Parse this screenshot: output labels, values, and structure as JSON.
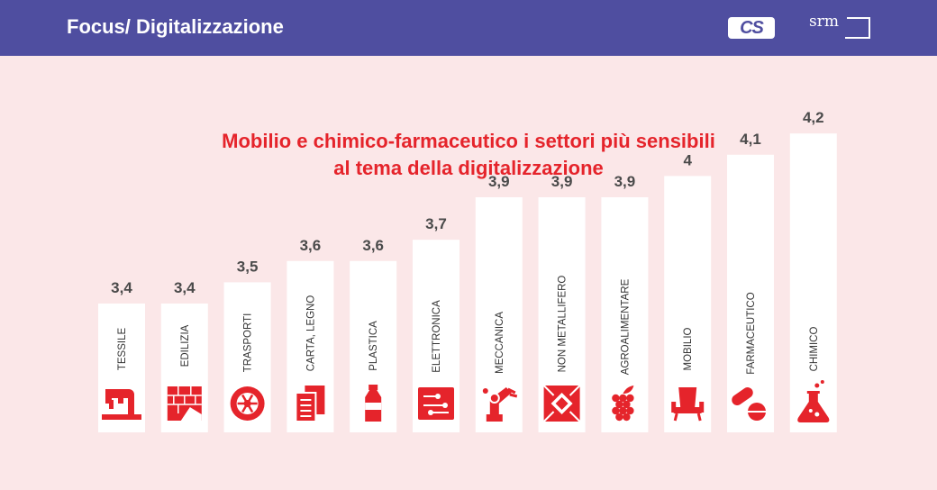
{
  "header": {
    "title": "Focus/ Digitalizzazione",
    "logo_cs": "CS",
    "logo_srm": "srm"
  },
  "colors": {
    "header_bg": "#4f4ea0",
    "page_bg": "#fbe7e8",
    "accent_red": "#e5242b",
    "bar_fill": "#ffffff",
    "value_text": "#4a4a4a"
  },
  "chart_data": {
    "type": "bar",
    "title": "Mobilio e chimico-farmaceutico i settori più sensibili al tema della digitalizzazione",
    "title_lines": [
      "Mobilio e chimico-farmaceutico i settori più sensibili",
      "al tema della digitalizzazione"
    ],
    "categories": [
      "TESSILE",
      "EDILIZIA",
      "TRASPORTI",
      "CARTA, LEGNO",
      "PLASTICA",
      "ELETTRONICA",
      "MECCANICA",
      "NON METALLIFERO",
      "AGROALIMENTARE",
      "MOBILIO",
      "FARMACEUTICO",
      "CHIMICO"
    ],
    "values": [
      3.4,
      3.4,
      3.5,
      3.6,
      3.6,
      3.7,
      3.9,
      3.9,
      3.9,
      4,
      4.1,
      4.2
    ],
    "value_labels": [
      "3,4",
      "3,4",
      "3,5",
      "3,6",
      "3,6",
      "3,7",
      "3,9",
      "3,9",
      "3,9",
      "4",
      "4,1",
      "4,2"
    ],
    "icons": [
      "sewing-machine-icon",
      "brick-wall-icon",
      "wheel-icon",
      "paper-stack-icon",
      "bottle-icon",
      "circuit-board-icon",
      "robot-arm-icon",
      "tile-icon",
      "grapes-icon",
      "armchair-icon",
      "pills-icon",
      "flask-icon"
    ],
    "xlabel": "",
    "ylabel": "",
    "grid": false
  }
}
